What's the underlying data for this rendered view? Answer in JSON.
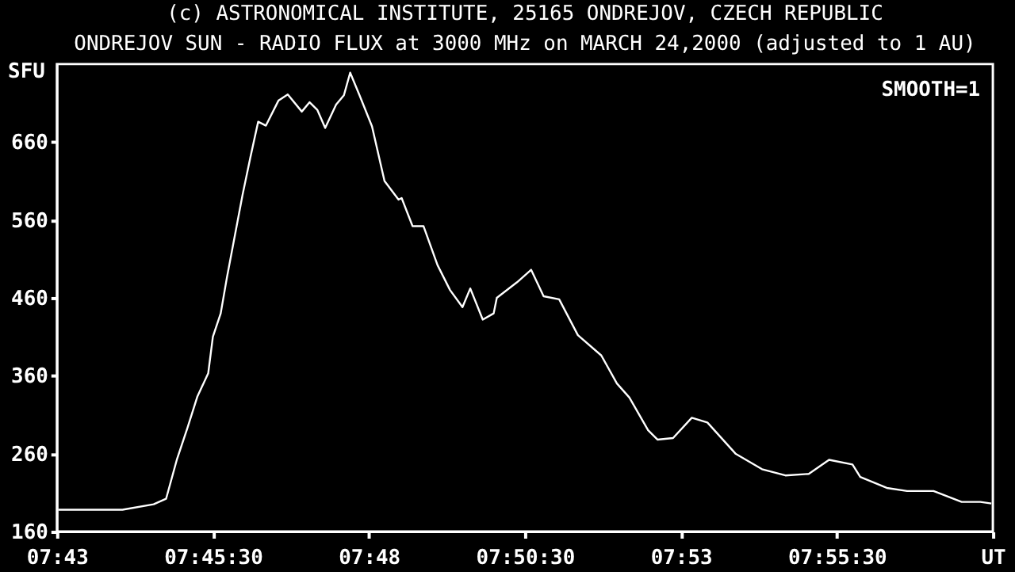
{
  "chart_data": {
    "type": "line",
    "title": "(c) ASTRONOMICAL INSTITUTE, 25165 ONDREJOV, CZECH REPUBLIC",
    "subtitle": "ONDREJOV SUN - RADIO FLUX at 3000 MHz on MARCH 24,2000 (adjusted to 1 AU)",
    "ylabel": "SFU",
    "annotations": [
      "SMOOTH=1"
    ],
    "x": [
      7.71708,
      7.73417,
      7.7425,
      7.74583,
      7.74875,
      7.75154,
      7.75417,
      7.75708,
      7.75833,
      7.76042,
      7.76208,
      7.76625,
      7.76833,
      7.77042,
      7.7725,
      7.77583,
      7.77833,
      7.78208,
      7.78417,
      7.78625,
      7.78833,
      7.79125,
      7.79333,
      7.795,
      7.7975,
      7.80083,
      7.80417,
      7.80792,
      7.80875,
      7.81167,
      7.81458,
      7.81833,
      7.82167,
      7.825,
      7.82708,
      7.83042,
      7.83333,
      7.83417,
      7.83958,
      7.84333,
      7.84667,
      7.85083,
      7.85583,
      7.86208,
      7.86625,
      7.86958,
      7.87458,
      7.87708,
      7.88125,
      7.88625,
      7.89042,
      7.89792,
      7.905,
      7.91125,
      7.9175,
      7.92292,
      7.92917,
      7.93125,
      7.93833,
      7.94375,
      7.95083,
      7.95833,
      7.96333,
      7.96625
    ],
    "series": [
      {
        "color": "#ffffff",
        "values": [
          188,
          188,
          195,
          202,
          253,
          293,
          333,
          363,
          410,
          440,
          486,
          592,
          640,
          686,
          681,
          713,
          721,
          699,
          711,
          701,
          678,
          708,
          720,
          749,
          720,
          680,
          610,
          586,
          588,
          552,
          552,
          502,
          470,
          448,
          472,
          432,
          440,
          460,
          480,
          496,
          462,
          458,
          412,
          386,
          350,
          332,
          290,
          278,
          280,
          306,
          300,
          260,
          240,
          232,
          234,
          252,
          246,
          230,
          216,
          212,
          212,
          198,
          198,
          196
        ]
      }
    ],
    "xlim": [
      7.71667,
      7.96667
    ],
    "xticks": [
      {
        "value": 7.71667,
        "label": "07:43"
      },
      {
        "value": 7.75833,
        "label": "07:45:30"
      },
      {
        "value": 7.8,
        "label": "07:48"
      },
      {
        "value": 7.84167,
        "label": "07:50:30"
      },
      {
        "value": 7.88333,
        "label": "07:53"
      },
      {
        "value": 7.925,
        "label": "07:55:30"
      },
      {
        "value": 7.96667,
        "label": "UT"
      }
    ],
    "ylim": [
      160,
      760
    ],
    "yticks": [
      160,
      260,
      360,
      460,
      560,
      660
    ],
    "grid": false,
    "marker": "none",
    "line_style": "solid"
  }
}
